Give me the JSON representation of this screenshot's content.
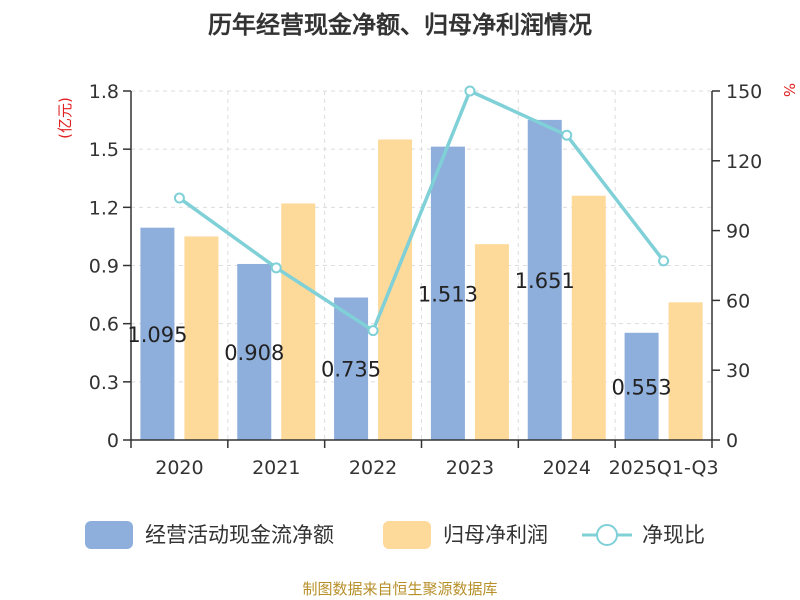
{
  "colors": {
    "cashflow": "#8eaedc",
    "profit": "#fdd99a",
    "ratio_line": "#7fd0d7",
    "axis": "#333333",
    "unit_label": "#e02020",
    "source": "#b8902a"
  },
  "footer": {
    "source": "制图数据来自恒生聚源数据库"
  },
  "chart_data": {
    "type": "bar",
    "title": "历年经营现金净额、归母净利润情况",
    "categories": [
      "2020",
      "2021",
      "2022",
      "2023",
      "2024",
      "2025Q1-Q3"
    ],
    "series": [
      {
        "name": "经营活动现金流净额",
        "type": "bar",
        "axis": "left",
        "values": [
          1.095,
          0.908,
          0.735,
          1.513,
          1.651,
          0.553
        ],
        "labels": [
          "1.095",
          "0.908",
          "0.735",
          "1.513",
          "1.651",
          "0.553"
        ]
      },
      {
        "name": "归母净利润",
        "type": "bar",
        "axis": "left",
        "values": [
          1.05,
          1.22,
          1.55,
          1.01,
          1.26,
          0.71
        ]
      },
      {
        "name": "净现比",
        "type": "line",
        "axis": "right",
        "values": [
          104,
          74,
          47,
          150,
          131,
          77
        ]
      }
    ],
    "y_left": {
      "label": "(亿元)",
      "lim": [
        0,
        1.8
      ],
      "ticks": [
        "0",
        "0.3",
        "0.6",
        "0.9",
        "1.2",
        "1.5",
        "1.8"
      ]
    },
    "y_right": {
      "label": "%",
      "lim": [
        0,
        150
      ],
      "ticks": [
        "0",
        "30",
        "60",
        "90",
        "120",
        "150"
      ]
    },
    "grid": true,
    "legend_position": "bottom"
  }
}
